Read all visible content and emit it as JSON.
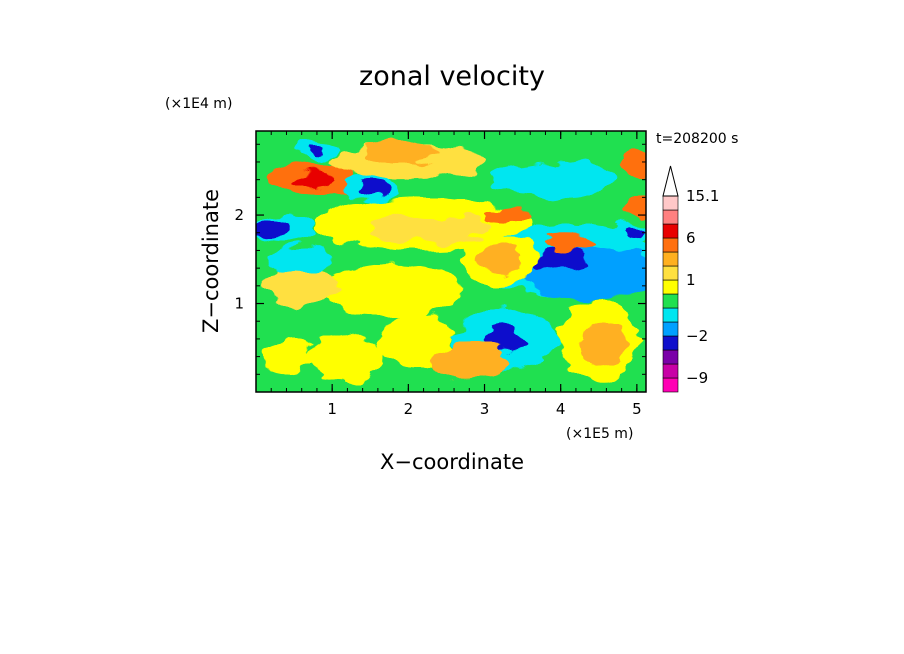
{
  "chart_data": {
    "type": "heatmap",
    "title": "zonal velocity",
    "xlabel": "X−coordinate",
    "ylabel": "Z−coordinate",
    "x_scale_label": "(×1E5 m)",
    "y_scale_label": "(×1E4 m)",
    "time_label": "t=208200 s",
    "xlim": [
      0.0,
      5.12
    ],
    "ylim": [
      0.0,
      2.95
    ],
    "x_ticks": [
      1,
      2,
      3,
      4,
      5
    ],
    "x_tick_labels": [
      "1",
      "2",
      "3",
      "4",
      "5"
    ],
    "y_ticks": [
      1,
      2
    ],
    "y_tick_labels": [
      "1",
      "2"
    ],
    "grid": false,
    "colorbar": {
      "position": "right",
      "extend": "max",
      "levels": [
        -12,
        -9,
        -6,
        -3,
        -2,
        -1,
        0,
        0.5,
        1,
        2,
        4,
        6,
        9,
        12,
        15.1
      ],
      "colors": [
        "#ff00b4",
        "#c800a6",
        "#7a00a8",
        "#1010cc",
        "#00a0ff",
        "#00e6f0",
        "#20e050",
        "#ffff00",
        "#ffe040",
        "#ffb020",
        "#ff7010",
        "#e80000",
        "#ff8080",
        "#ffc8c8"
      ],
      "tick_labels": [
        "15.1",
        "6",
        "1",
        "−2",
        "−9"
      ],
      "tick_values": [
        15.1,
        6,
        1,
        -2,
        -9
      ]
    },
    "background_level_index": 6,
    "regions": [
      {
        "x": 0.75,
        "y": 2.4,
        "rx": 0.55,
        "ry": 0.17,
        "level": 10
      },
      {
        "x": 0.75,
        "y": 2.4,
        "rx": 0.28,
        "ry": 0.09,
        "level": 11
      },
      {
        "x": 2.0,
        "y": 2.6,
        "rx": 1.0,
        "ry": 0.2,
        "level": 8
      },
      {
        "x": 1.9,
        "y": 2.7,
        "rx": 0.5,
        "ry": 0.12,
        "level": 9
      },
      {
        "x": 0.35,
        "y": 1.85,
        "rx": 0.45,
        "ry": 0.15,
        "level": 5
      },
      {
        "x": 0.2,
        "y": 1.85,
        "rx": 0.25,
        "ry": 0.1,
        "level": 3
      },
      {
        "x": 1.5,
        "y": 2.3,
        "rx": 0.35,
        "ry": 0.14,
        "level": 5
      },
      {
        "x": 1.55,
        "y": 2.3,
        "rx": 0.18,
        "ry": 0.08,
        "level": 3
      },
      {
        "x": 0.8,
        "y": 2.75,
        "rx": 0.3,
        "ry": 0.12,
        "level": 5
      },
      {
        "x": 0.8,
        "y": 2.75,
        "rx": 0.08,
        "ry": 0.06,
        "level": 3
      },
      {
        "x": 2.2,
        "y": 1.9,
        "rx": 1.4,
        "ry": 0.3,
        "level": 7
      },
      {
        "x": 2.3,
        "y": 1.85,
        "rx": 0.8,
        "ry": 0.15,
        "level": 8
      },
      {
        "x": 4.1,
        "y": 1.5,
        "rx": 1.2,
        "ry": 0.4,
        "level": 5
      },
      {
        "x": 4.4,
        "y": 1.35,
        "rx": 0.9,
        "ry": 0.3,
        "level": 4
      },
      {
        "x": 4.0,
        "y": 1.5,
        "rx": 0.35,
        "ry": 0.12,
        "level": 3
      },
      {
        "x": 3.2,
        "y": 1.5,
        "rx": 0.5,
        "ry": 0.28,
        "level": 7
      },
      {
        "x": 3.2,
        "y": 1.5,
        "rx": 0.3,
        "ry": 0.16,
        "level": 9
      },
      {
        "x": 3.3,
        "y": 0.6,
        "rx": 0.7,
        "ry": 0.35,
        "level": 5
      },
      {
        "x": 3.25,
        "y": 0.6,
        "rx": 0.25,
        "ry": 0.15,
        "level": 3
      },
      {
        "x": 4.5,
        "y": 0.6,
        "rx": 0.5,
        "ry": 0.45,
        "level": 7
      },
      {
        "x": 4.55,
        "y": 0.55,
        "rx": 0.3,
        "ry": 0.25,
        "level": 9
      },
      {
        "x": 1.8,
        "y": 1.15,
        "rx": 0.9,
        "ry": 0.3,
        "level": 7
      },
      {
        "x": 0.6,
        "y": 1.2,
        "rx": 0.5,
        "ry": 0.25,
        "level": 8
      },
      {
        "x": 0.4,
        "y": 0.4,
        "rx": 0.35,
        "ry": 0.2,
        "level": 7
      },
      {
        "x": 1.2,
        "y": 0.4,
        "rx": 0.5,
        "ry": 0.25,
        "level": 7
      },
      {
        "x": 2.1,
        "y": 0.6,
        "rx": 0.5,
        "ry": 0.3,
        "level": 7
      },
      {
        "x": 2.8,
        "y": 0.35,
        "rx": 0.5,
        "ry": 0.2,
        "level": 9
      },
      {
        "x": 5.0,
        "y": 2.6,
        "rx": 0.25,
        "ry": 0.15,
        "level": 10
      },
      {
        "x": 5.05,
        "y": 2.1,
        "rx": 0.2,
        "ry": 0.12,
        "level": 10
      },
      {
        "x": 4.95,
        "y": 1.8,
        "rx": 0.25,
        "ry": 0.12,
        "level": 5
      },
      {
        "x": 5.0,
        "y": 1.8,
        "rx": 0.15,
        "ry": 0.07,
        "level": 3
      },
      {
        "x": 3.9,
        "y": 2.4,
        "rx": 0.8,
        "ry": 0.2,
        "level": 5
      },
      {
        "x": 4.1,
        "y": 1.7,
        "rx": 0.3,
        "ry": 0.1,
        "level": 10
      },
      {
        "x": 3.3,
        "y": 2.0,
        "rx": 0.3,
        "ry": 0.08,
        "level": 10
      },
      {
        "x": 0.6,
        "y": 1.5,
        "rx": 0.4,
        "ry": 0.15,
        "level": 5
      }
    ]
  }
}
